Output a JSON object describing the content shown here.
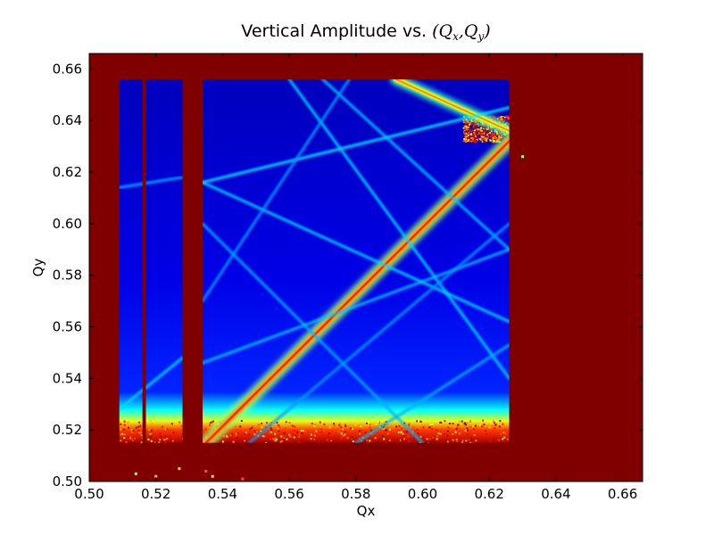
{
  "chart_data": {
    "type": "heatmap",
    "title": "Vertical Amplitude vs. (Qₓ,Qᵧ)",
    "title_parts": {
      "prefix": "Vertical Amplitude vs. ",
      "open": "(",
      "qx_base": "Q",
      "qx_sub": "x",
      "comma": ",",
      "qy_base": "Q",
      "qy_sub": "y",
      "close": ")"
    },
    "xlabel": "Qx",
    "ylabel": "Qy",
    "xlim": [
      0.5,
      0.666
    ],
    "ylim": [
      0.5,
      0.666
    ],
    "xticks": [
      0.5,
      0.52,
      0.54,
      0.56,
      0.58,
      0.6,
      0.62,
      0.64,
      0.66
    ],
    "yticks": [
      0.5,
      0.52,
      0.54,
      0.56,
      0.58,
      0.6,
      0.62,
      0.64,
      0.66
    ],
    "xtick_labels": [
      "0.50",
      "0.52",
      "0.54",
      "0.56",
      "0.58",
      "0.60",
      "0.62",
      "0.64",
      "0.66"
    ],
    "ytick_labels": [
      "0.50",
      "0.52",
      "0.54",
      "0.56",
      "0.58",
      "0.60",
      "0.62",
      "0.64",
      "0.66"
    ],
    "colormap": "jet",
    "background_color": "#800000",
    "grid": false,
    "legend": "none",
    "stable_regions": [
      {
        "name": "left-strip-a",
        "qx": [
          0.509,
          0.516
        ],
        "qy": [
          0.515,
          0.656
        ]
      },
      {
        "name": "left-strip-b",
        "qx": [
          0.517,
          0.528
        ],
        "qy": [
          0.515,
          0.656
        ]
      },
      {
        "name": "main-region",
        "qx": [
          0.534,
          0.626
        ],
        "qy": [
          0.515,
          0.656
        ]
      }
    ],
    "resonance_lines": [
      {
        "name": "diagonal-qx-eq-qy",
        "from": [
          0.535,
          0.515
        ],
        "to": [
          0.626,
          0.632
        ],
        "intensity": 0.72,
        "width": 7
      },
      {
        "name": "upper-band",
        "from": [
          0.592,
          0.656
        ],
        "to": [
          0.626,
          0.636
        ],
        "intensity": 0.62,
        "width": 6
      },
      {
        "name": "horizontal-055",
        "from": [
          0.534,
          0.55
        ],
        "to": [
          0.626,
          0.55
        ],
        "intensity": 0.38,
        "width": 2
      },
      {
        "name": "horizontal-055-left",
        "from": [
          0.509,
          0.55
        ],
        "to": [
          0.528,
          0.55
        ],
        "intensity": 0.35,
        "width": 2
      },
      {
        "name": "horizontal-052",
        "from": [
          0.509,
          0.522
        ],
        "to": [
          0.626,
          0.522
        ],
        "intensity": 0.45,
        "width": 2
      },
      {
        "name": "line-a",
        "from": [
          0.534,
          0.616
        ],
        "to": [
          0.626,
          0.645
        ],
        "intensity": 0.36,
        "width": 2
      },
      {
        "name": "line-b",
        "from": [
          0.534,
          0.616
        ],
        "to": [
          0.626,
          0.562
        ],
        "intensity": 0.34,
        "width": 2
      },
      {
        "name": "line-c",
        "from": [
          0.56,
          0.656
        ],
        "to": [
          0.626,
          0.54
        ],
        "intensity": 0.34,
        "width": 2
      },
      {
        "name": "line-d",
        "from": [
          0.57,
          0.656
        ],
        "to": [
          0.626,
          0.59
        ],
        "intensity": 0.32,
        "width": 2
      },
      {
        "name": "line-e",
        "from": [
          0.534,
          0.6
        ],
        "to": [
          0.6,
          0.515
        ],
        "intensity": 0.3,
        "width": 2
      },
      {
        "name": "line-f",
        "from": [
          0.578,
          0.656
        ],
        "to": [
          0.534,
          0.57
        ],
        "intensity": 0.28,
        "width": 2
      },
      {
        "name": "line-g",
        "from": [
          0.534,
          0.546
        ],
        "to": [
          0.626,
          0.59
        ],
        "intensity": 0.32,
        "width": 2
      },
      {
        "name": "line-h",
        "from": [
          0.548,
          0.515
        ],
        "to": [
          0.626,
          0.6
        ],
        "intensity": 0.28,
        "width": 2
      },
      {
        "name": "line-i",
        "from": [
          0.58,
          0.515
        ],
        "to": [
          0.626,
          0.553
        ],
        "intensity": 0.3,
        "width": 2
      },
      {
        "name": "line-j",
        "from": [
          0.509,
          0.528
        ],
        "to": [
          0.528,
          0.548
        ],
        "intensity": 0.34,
        "width": 2
      },
      {
        "name": "line-k",
        "from": [
          0.509,
          0.614
        ],
        "to": [
          0.528,
          0.618
        ],
        "intensity": 0.3,
        "width": 2
      },
      {
        "name": "vertical-0565",
        "from": [
          0.565,
          0.515
        ],
        "to": [
          0.565,
          0.656
        ],
        "intensity": 0.24,
        "width": 2
      },
      {
        "name": "vertical-0617",
        "from": [
          0.617,
          0.515
        ],
        "to": [
          0.617,
          0.656
        ],
        "intensity": 0.24,
        "width": 2
      }
    ],
    "noisy_edges": [
      {
        "name": "bottom-edge",
        "qx": [
          0.509,
          0.626
        ],
        "qy_range": [
          0.515,
          0.524
        ]
      },
      {
        "name": "upper-right-crossing",
        "qx": [
          0.612,
          0.626
        ],
        "qy_range": [
          0.632,
          0.642
        ]
      }
    ],
    "stray_points": [
      [
        0.514,
        0.503
      ],
      [
        0.52,
        0.502
      ],
      [
        0.535,
        0.504
      ],
      [
        0.537,
        0.502
      ],
      [
        0.527,
        0.505
      ],
      [
        0.546,
        0.501
      ],
      [
        0.63,
        0.626
      ]
    ]
  }
}
